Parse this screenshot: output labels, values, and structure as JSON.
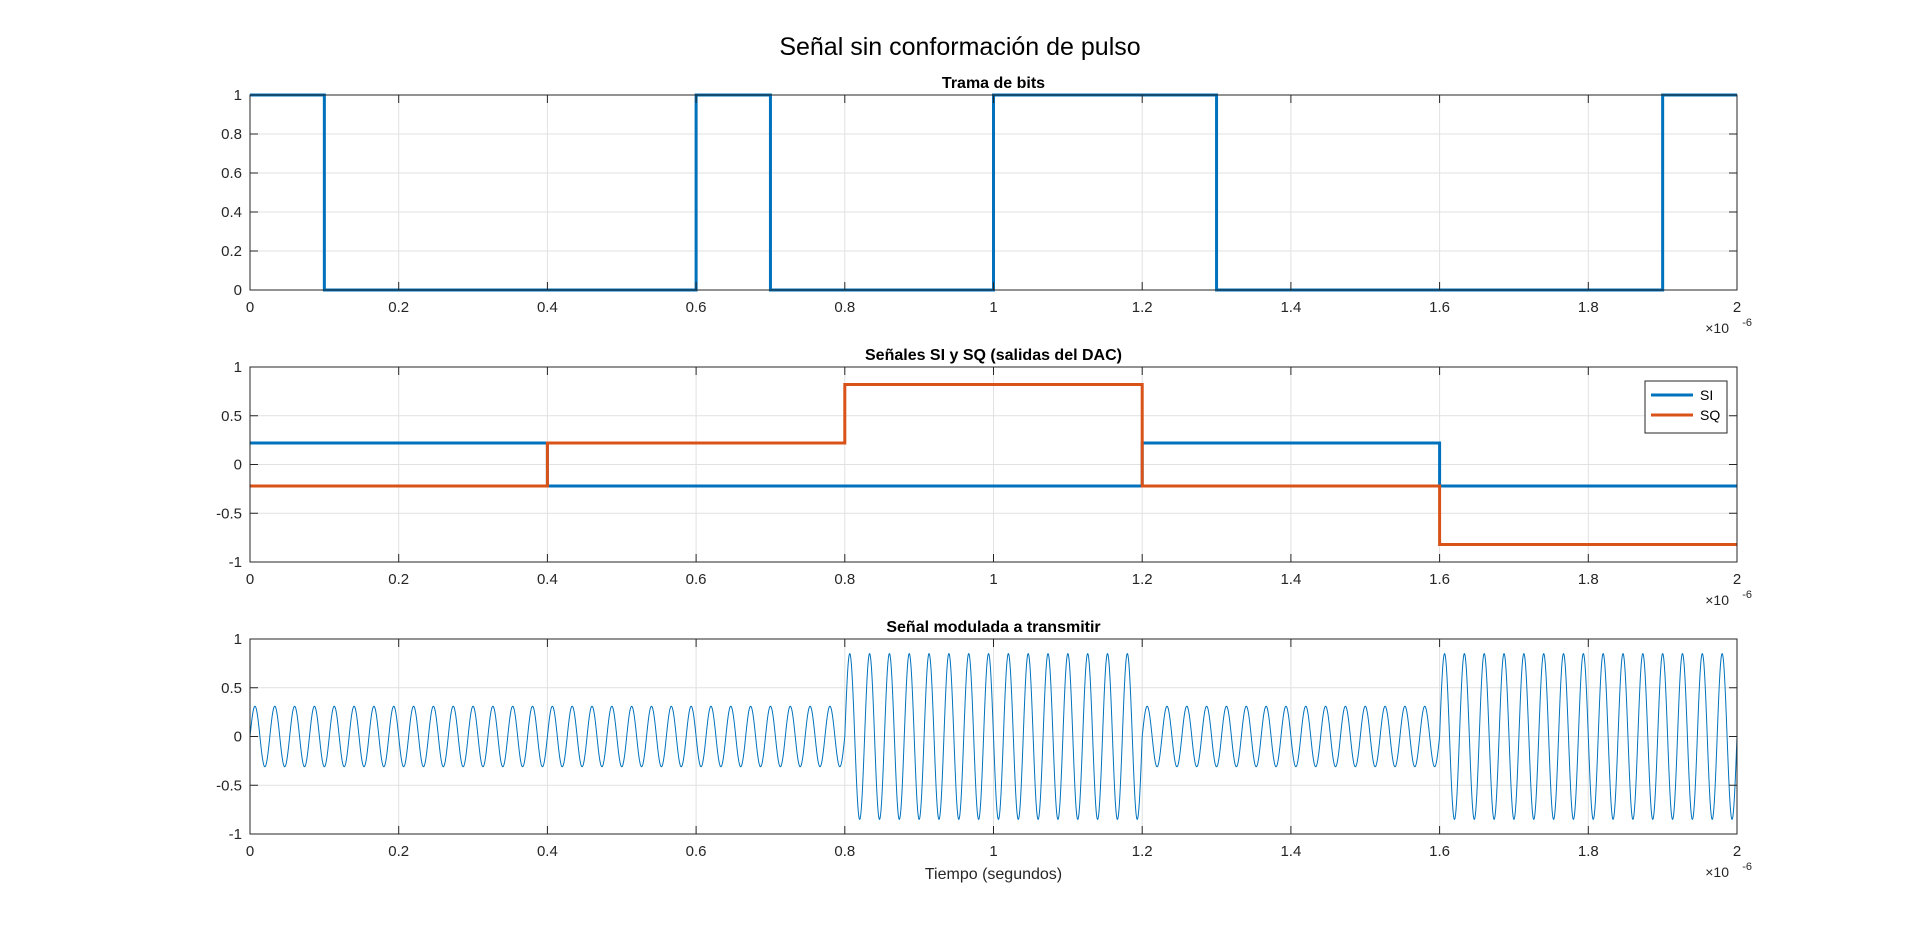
{
  "figure": {
    "title": "Señal sin conformación de pulso",
    "background": "#ffffff"
  },
  "colors": {
    "series1": "#0072BD",
    "series2": "#D95319",
    "grid": "#e1e1e1",
    "axis": "#262626"
  },
  "chart_data": [
    {
      "type": "line",
      "title": "Trama de bits",
      "xlabel": "",
      "ylabel": "",
      "xlim": [
        0,
        2e-06
      ],
      "ylim": [
        0,
        1
      ],
      "xticks": [
        0,
        0.2,
        0.4,
        0.6,
        0.8,
        1,
        1.2,
        1.4,
        1.6,
        1.8,
        2
      ],
      "yticks": [
        0,
        0.2,
        0.4,
        0.6,
        0.8,
        1
      ],
      "xtick_labels": [
        "0",
        "0.2",
        "0.4",
        "0.6",
        "0.8",
        "1",
        "1.2",
        "1.4",
        "1.6",
        "1.8",
        "2"
      ],
      "ytick_labels": [
        "0",
        "0.2",
        "0.4",
        "0.6",
        "0.8",
        "1"
      ],
      "x_exponent": "×10",
      "x_exponent_power": "-6",
      "grid": true,
      "legend": null,
      "series": [
        {
          "color": "#0072BD",
          "step": true,
          "line_width": 3,
          "bit_period": 1e-07,
          "values": [
            1,
            0,
            0,
            0,
            0,
            0,
            1,
            0,
            0,
            0,
            1,
            1,
            1,
            0,
            0,
            0,
            0,
            0,
            0,
            1
          ]
        }
      ]
    },
    {
      "type": "line",
      "title": "Señales SI y SQ (salidas del DAC)",
      "xlabel": "",
      "ylabel": "",
      "xlim": [
        0,
        2e-06
      ],
      "ylim": [
        -1,
        1
      ],
      "xticks": [
        0,
        0.2,
        0.4,
        0.6,
        0.8,
        1,
        1.2,
        1.4,
        1.6,
        1.8,
        2
      ],
      "yticks": [
        -1,
        -0.5,
        0,
        0.5,
        1
      ],
      "xtick_labels": [
        "0",
        "0.2",
        "0.4",
        "0.6",
        "0.8",
        "1",
        "1.2",
        "1.4",
        "1.6",
        "1.8",
        "2"
      ],
      "ytick_labels": [
        "-1",
        "-0.5",
        "0",
        "0.5",
        "1"
      ],
      "x_exponent": "×10",
      "x_exponent_power": "-6",
      "grid": true,
      "legend": "top-right",
      "series": [
        {
          "name": "SI",
          "color": "#0072BD",
          "step": true,
          "line_width": 3,
          "segments": [
            {
              "x0": 0,
              "x1": 4e-07,
              "y": 0.22
            },
            {
              "x0": 4e-07,
              "x1": 1.2e-06,
              "y": -0.22
            },
            {
              "x0": 1.2e-06,
              "x1": 1.6e-06,
              "y": 0.22
            },
            {
              "x0": 1.6e-06,
              "x1": 2e-06,
              "y": -0.22
            }
          ]
        },
        {
          "name": "SQ",
          "color": "#D95319",
          "step": true,
          "line_width": 3,
          "segments": [
            {
              "x0": 0,
              "x1": 4e-07,
              "y": -0.22
            },
            {
              "x0": 4e-07,
              "x1": 8e-07,
              "y": 0.22
            },
            {
              "x0": 8e-07,
              "x1": 1.2e-06,
              "y": 0.82
            },
            {
              "x0": 1.2e-06,
              "x1": 1.6e-06,
              "y": -0.22
            },
            {
              "x0": 1.6e-06,
              "x1": 2e-06,
              "y": -0.82
            }
          ]
        }
      ]
    },
    {
      "type": "line",
      "title": "Señal modulada a transmitir",
      "xlabel": "Tiempo (segundos)",
      "ylabel": "",
      "xlim": [
        0,
        2e-06
      ],
      "ylim": [
        -1,
        1
      ],
      "xticks": [
        0,
        0.2,
        0.4,
        0.6,
        0.8,
        1,
        1.2,
        1.4,
        1.6,
        1.8,
        2
      ],
      "yticks": [
        -1,
        -0.5,
        0,
        0.5,
        1
      ],
      "xtick_labels": [
        "0",
        "0.2",
        "0.4",
        "0.6",
        "0.8",
        "1",
        "1.2",
        "1.4",
        "1.6",
        "1.8",
        "2"
      ],
      "ytick_labels": [
        "-1",
        "-0.5",
        "0",
        "0.5",
        "1"
      ],
      "x_exponent": "×10",
      "x_exponent_power": "-6",
      "grid": true,
      "legend": null,
      "series": [
        {
          "color": "#0072BD",
          "step": false,
          "line_width": 1,
          "carrier_frequency": 37500000.0,
          "segments": [
            {
              "x0": 0,
              "x1": 8e-07,
              "amplitude": 0.31
            },
            {
              "x0": 8e-07,
              "x1": 1.2e-06,
              "amplitude": 0.85
            },
            {
              "x0": 1.2e-06,
              "x1": 1.6e-06,
              "amplitude": 0.31
            },
            {
              "x0": 1.6e-06,
              "x1": 2e-06,
              "amplitude": 0.85
            }
          ]
        }
      ]
    }
  ]
}
